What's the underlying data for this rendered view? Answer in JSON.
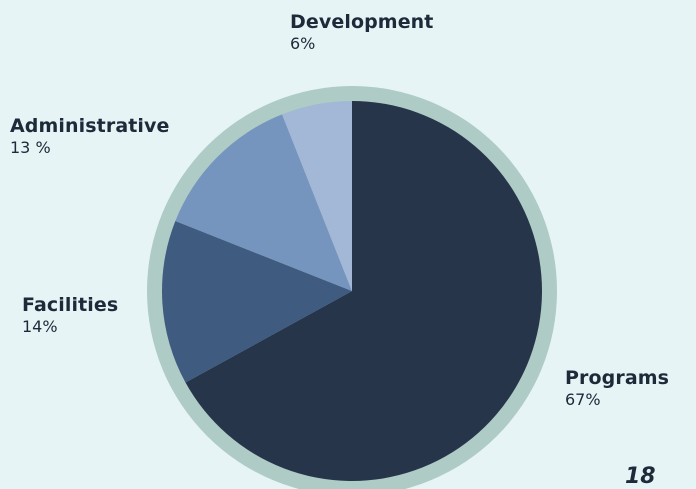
{
  "chart_data": {
    "type": "pie",
    "categories": [
      "Programs",
      "Facilities",
      "Administrative",
      "Development"
    ],
    "values": [
      67,
      14,
      13,
      6
    ],
    "value_labels": [
      "67%",
      "14%",
      "13 %",
      "6%"
    ],
    "colors": [
      "#26354a",
      "#3f5b80",
      "#7595bf",
      "#a3b8d6"
    ],
    "ring_color": "#aecbc6",
    "background": "#e6f4f5",
    "start": "12 o'clock",
    "direction": "clockwise",
    "legend": "none"
  },
  "page": {
    "number": "18"
  }
}
